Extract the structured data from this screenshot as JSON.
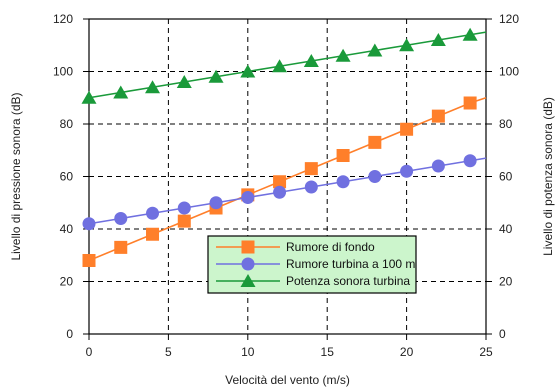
{
  "chart_data": {
    "type": "line",
    "xlabel": "Velocità del vento (m/s)",
    "ylabel_left": "Livello di pressione sonora (dB)",
    "ylabel_right": "Livello di potenza sonora (dB)",
    "xlim": [
      0,
      25
    ],
    "ylim": [
      0,
      120
    ],
    "x_ticks": [
      0,
      5,
      10,
      15,
      20,
      25
    ],
    "y_ticks": [
      0,
      20,
      40,
      60,
      80,
      100,
      120
    ],
    "grid": true,
    "grid_style": "dashed",
    "legend_position": "lower-right",
    "series": [
      {
        "name": "Rumore di fondo",
        "color": "#ff7f2a",
        "marker": "square",
        "x": [
          0,
          2,
          4,
          6,
          8,
          10,
          12,
          14,
          16,
          18,
          20,
          22,
          24
        ],
        "marker_x": [
          0,
          2,
          4,
          6,
          8,
          10,
          12,
          14,
          16,
          18,
          20,
          22,
          24
        ],
        "values": [
          28,
          33,
          38,
          43,
          48,
          53,
          58,
          63,
          68,
          73,
          78,
          83,
          88
        ],
        "line_end": [
          25,
          90
        ]
      },
      {
        "name": "Rumore turbina a 100 m",
        "color": "#7070e0",
        "marker": "circle",
        "x": [
          0,
          2,
          4,
          6,
          8,
          10,
          12,
          14,
          16,
          18,
          20,
          22,
          24
        ],
        "values": [
          42,
          44,
          46,
          48,
          50,
          52,
          54,
          56,
          58,
          60,
          62,
          64,
          66
        ],
        "line_end": [
          25,
          67
        ]
      },
      {
        "name": "Potenza sonora turbina",
        "color": "#1a9a3a",
        "marker": "triangle",
        "x": [
          0,
          2,
          4,
          6,
          8,
          10,
          12,
          14,
          16,
          18,
          20,
          22,
          24
        ],
        "values": [
          90,
          92,
          94,
          96,
          98,
          100,
          102,
          104,
          106,
          108,
          110,
          112,
          114
        ],
        "line_end": [
          25,
          115
        ]
      }
    ],
    "legend_background": "#ccf5cc"
  }
}
